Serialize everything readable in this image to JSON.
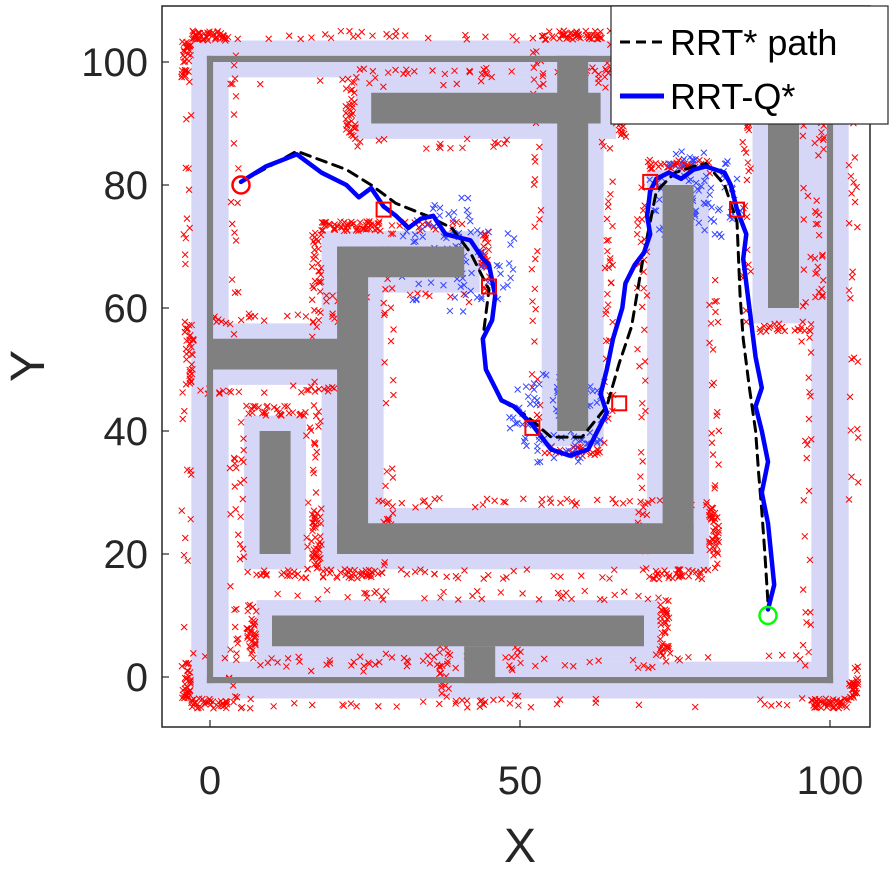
{
  "chart_data": {
    "type": "scatter",
    "xlabel": "X",
    "ylabel": "Y",
    "xlim": [
      -8,
      108
    ],
    "ylim": [
      -8,
      108
    ],
    "x_ticks": [
      0,
      50,
      100
    ],
    "y_ticks": [
      0,
      20,
      40,
      60,
      80,
      100
    ],
    "x_tick_labels": [
      "0",
      "50",
      "100"
    ],
    "y_tick_labels": [
      "0",
      "20",
      "40",
      "60",
      "80",
      "100"
    ],
    "grid": false,
    "legend_position": "top-right",
    "legend": [
      {
        "label": "RRT* path",
        "color": "#000000",
        "style": "dashed"
      },
      {
        "label": "RRT-Q*",
        "color": "#0000ff",
        "style": "solid"
      }
    ],
    "colors": {
      "wall": "#808080",
      "inflation": "#d6d6f7",
      "samples": "#ff0000",
      "local_samples": "#3344ff",
      "start": "#ff0000",
      "goal": "#00ff00",
      "rrt_star": "#000000",
      "rrt_q": "#0000ff"
    },
    "inflation_region": {
      "x": [
        -3,
        103
      ],
      "y": [
        -3,
        103
      ]
    },
    "walls": [
      {
        "x": [
          -0.5,
          100.5
        ],
        "y": [
          -1,
          0
        ]
      },
      {
        "x": [
          -0.5,
          100.5
        ],
        "y": [
          100,
          101
        ]
      },
      {
        "x": [
          -0.5,
          0.5
        ],
        "y": [
          -1,
          101
        ]
      },
      {
        "x": [
          99.5,
          100.5
        ],
        "y": [
          -1,
          101
        ]
      },
      {
        "x": [
          26,
          63
        ],
        "y": [
          90,
          95
        ]
      },
      {
        "x": [
          56,
          61
        ],
        "y": [
          40,
          101
        ]
      },
      {
        "x": [
          0,
          21
        ],
        "y": [
          50,
          55
        ]
      },
      {
        "x": [
          20.5,
          25.5
        ],
        "y": [
          20,
          70
        ]
      },
      {
        "x": [
          20.5,
          41
        ],
        "y": [
          65,
          70
        ]
      },
      {
        "x": [
          20.5,
          78
        ],
        "y": [
          20,
          25
        ]
      },
      {
        "x": [
          73,
          78
        ],
        "y": [
          20,
          80
        ]
      },
      {
        "x": [
          90,
          95
        ],
        "y": [
          60,
          90
        ]
      },
      {
        "x": [
          8,
          13
        ],
        "y": [
          20,
          40
        ]
      },
      {
        "x": [
          10,
          70
        ],
        "y": [
          5,
          10
        ]
      },
      {
        "x": [
          41,
          46
        ],
        "y": [
          -1,
          5
        ]
      }
    ],
    "start": {
      "x": 5,
      "y": 80
    },
    "goal": {
      "x": 90,
      "y": 10
    },
    "waypoints": [
      {
        "x": 28,
        "y": 76
      },
      {
        "x": 45,
        "y": 63.5
      },
      {
        "x": 52,
        "y": 40.5
      },
      {
        "x": 66,
        "y": 44.5
      },
      {
        "x": 71,
        "y": 80.5
      },
      {
        "x": 85,
        "y": 76
      }
    ],
    "series": [
      {
        "name": "RRT* path",
        "style": "dashed",
        "x": [
          5,
          14,
          18,
          22,
          26,
          30,
          35,
          39,
          42,
          44,
          45,
          44.5,
          44,
          44.5,
          47,
          51,
          55,
          60,
          64,
          66,
          68,
          70,
          72,
          75,
          78,
          80,
          83,
          85,
          85.5,
          86,
          87,
          88,
          88.5,
          89,
          89.5,
          90
        ],
        "y": [
          80.5,
          85.5,
          84,
          82.5,
          80,
          77,
          75,
          73,
          69,
          65,
          63,
          59,
          55,
          50,
          45,
          42.5,
          39,
          39,
          44,
          51,
          57,
          69,
          79,
          82,
          83,
          83.5,
          80,
          74,
          62,
          55,
          47,
          40,
          33,
          27,
          20,
          12
        ]
      },
      {
        "name": "RRT-Q*",
        "style": "solid",
        "x": [
          5,
          9,
          14,
          18,
          22,
          24,
          26,
          28,
          30,
          32,
          34,
          36,
          38,
          40,
          42,
          44,
          45,
          46,
          45.5,
          44,
          44.5,
          46,
          47,
          49,
          52,
          55,
          58,
          61,
          62.5,
          64,
          63,
          64,
          65,
          66.5,
          67,
          68.5,
          70,
          71,
          70.5,
          71,
          72,
          74,
          76,
          78,
          80,
          83,
          84,
          85,
          86.5,
          86,
          87,
          87.5,
          88,
          89,
          88,
          89,
          90,
          89,
          90,
          90.5,
          91,
          90
        ],
        "y": [
          80.5,
          83,
          85,
          82,
          80,
          78,
          79.5,
          76.5,
          75,
          73,
          74.5,
          75,
          72,
          71.5,
          71,
          68,
          67,
          62,
          58,
          55,
          50,
          47,
          45,
          44,
          41,
          37,
          36,
          37,
          40,
          43,
          46,
          50,
          55,
          60,
          64,
          67,
          69,
          72,
          75,
          79,
          81,
          82,
          81,
          82.5,
          83,
          82,
          80,
          76,
          72,
          68,
          60,
          56,
          52,
          47,
          44,
          40,
          35,
          30,
          25,
          20,
          15,
          11
        ]
      }
    ]
  }
}
